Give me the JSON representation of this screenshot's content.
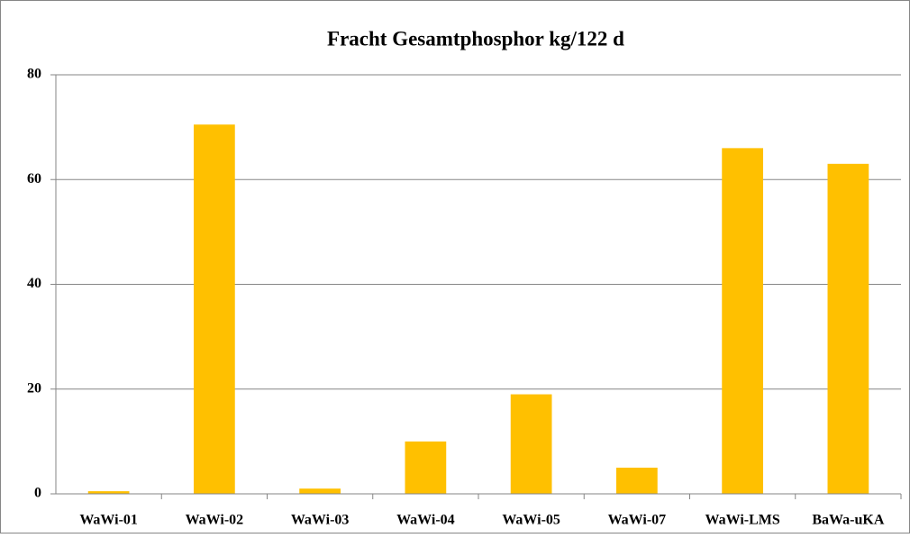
{
  "chart_data": {
    "type": "bar",
    "title": "Fracht Gesamtphosphor kg/122 d",
    "categories": [
      "WaWi-01",
      "WaWi-02",
      "WaWi-03",
      "WaWi-04",
      "WaWi-05",
      "WaWi-07",
      "WaWi-LMS",
      "BaWa-uKA"
    ],
    "values": [
      0.5,
      70.5,
      1,
      10,
      19,
      5,
      66,
      63
    ],
    "color": "#ffc000",
    "ylim": [
      0,
      80
    ],
    "yticks": [
      0,
      20,
      40,
      60,
      80
    ],
    "grid": true
  }
}
